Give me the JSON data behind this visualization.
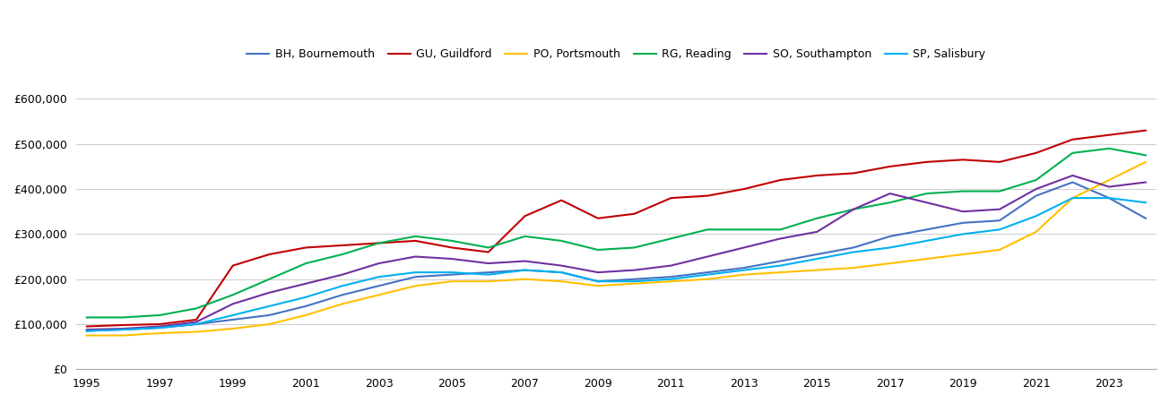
{
  "series": {
    "BH, Bournemouth": {
      "color": "#4472C4",
      "values": [
        85000,
        88000,
        92000,
        100000,
        110000,
        120000,
        140000,
        165000,
        185000,
        205000,
        210000,
        215000,
        220000,
        215000,
        195000,
        200000,
        205000,
        215000,
        225000,
        240000,
        255000,
        270000,
        295000,
        310000,
        325000,
        330000,
        385000,
        415000,
        380000,
        335000
      ]
    },
    "GU, Guildford": {
      "color": "#C00000",
      "values": [
        95000,
        98000,
        100000,
        110000,
        230000,
        255000,
        270000,
        275000,
        280000,
        285000,
        270000,
        260000,
        340000,
        375000,
        335000,
        345000,
        380000,
        385000,
        400000,
        420000,
        430000,
        435000,
        450000,
        460000,
        465000,
        460000,
        480000,
        510000,
        520000,
        530000
      ]
    },
    "PO, Portsmouth": {
      "color": "#FFC000",
      "values": [
        75000,
        75000,
        80000,
        83000,
        90000,
        100000,
        120000,
        145000,
        165000,
        185000,
        195000,
        195000,
        200000,
        195000,
        185000,
        190000,
        195000,
        200000,
        210000,
        215000,
        220000,
        225000,
        235000,
        245000,
        255000,
        265000,
        305000,
        380000,
        420000,
        460000
      ]
    },
    "RG, Reading": {
      "color": "#00B050",
      "values": [
        115000,
        115000,
        120000,
        135000,
        165000,
        200000,
        235000,
        255000,
        280000,
        295000,
        285000,
        270000,
        295000,
        285000,
        265000,
        270000,
        290000,
        310000,
        310000,
        310000,
        335000,
        355000,
        370000,
        390000,
        395000,
        395000,
        420000,
        480000,
        490000,
        475000
      ]
    },
    "SO, Southampton": {
      "color": "#7030A0",
      "values": [
        88000,
        90000,
        95000,
        105000,
        145000,
        170000,
        190000,
        210000,
        235000,
        250000,
        245000,
        235000,
        240000,
        230000,
        215000,
        220000,
        230000,
        250000,
        270000,
        290000,
        305000,
        355000,
        390000,
        370000,
        350000,
        355000,
        400000,
        430000,
        405000,
        415000
      ]
    },
    "SP, Salisbury": {
      "color": "#00B0F0",
      "values": [
        85000,
        88000,
        92000,
        100000,
        120000,
        140000,
        160000,
        185000,
        205000,
        215000,
        215000,
        210000,
        220000,
        215000,
        195000,
        195000,
        200000,
        210000,
        220000,
        230000,
        245000,
        260000,
        270000,
        285000,
        300000,
        310000,
        340000,
        380000,
        380000,
        370000
      ]
    }
  },
  "years": [
    1995,
    1996,
    1997,
    1998,
    1999,
    2000,
    2001,
    2002,
    2003,
    2004,
    2005,
    2006,
    2007,
    2008,
    2009,
    2010,
    2011,
    2012,
    2013,
    2014,
    2015,
    2016,
    2017,
    2018,
    2019,
    2020,
    2021,
    2022,
    2023,
    2024
  ],
  "ylim": [
    0,
    650000
  ],
  "yticks": [
    0,
    100000,
    200000,
    300000,
    400000,
    500000,
    600000
  ],
  "xticks": [
    1995,
    1997,
    1999,
    2001,
    2003,
    2005,
    2007,
    2009,
    2011,
    2013,
    2015,
    2017,
    2019,
    2021,
    2023
  ],
  "background_color": "#ffffff",
  "grid_color": "#d0d0d0",
  "legend_ncol": 6,
  "figsize": [
    13.05,
    4.5
  ],
  "dpi": 100
}
